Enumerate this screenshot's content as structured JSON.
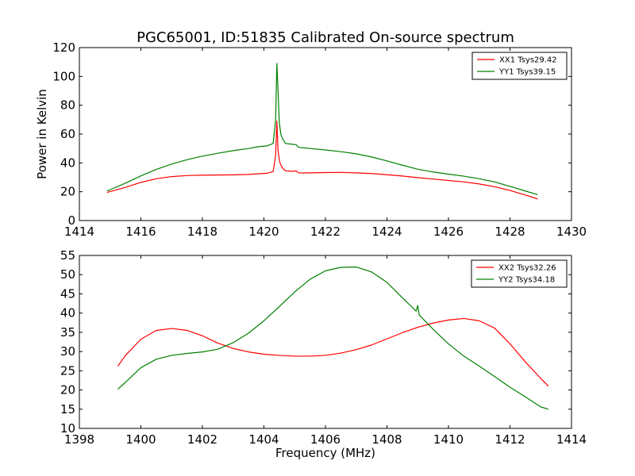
{
  "title": "PGC65001, ID:51835 Calibrated On-source spectrum",
  "chart_data": [
    {
      "type": "line",
      "ylabel": "Power in Kelvin",
      "xlabel": "",
      "xlim": [
        1414,
        1430
      ],
      "ylim": [
        0,
        120
      ],
      "xticks": [
        "1414",
        "1416",
        "1418",
        "1420",
        "1422",
        "1424",
        "1426",
        "1428",
        "1430"
      ],
      "yticks": [
        "0",
        "20",
        "40",
        "60",
        "80",
        "100",
        "120"
      ],
      "grid": false,
      "legend": "top-right",
      "series": [
        {
          "name": "XX1 Tsys29.42",
          "color": "#ff0000",
          "x": [
            1414.9,
            1415.5,
            1416,
            1416.5,
            1417,
            1417.5,
            1418,
            1418.5,
            1419,
            1419.5,
            1419.8,
            1420.1,
            1420.3,
            1420.38,
            1420.42,
            1420.46,
            1420.52,
            1420.6,
            1420.7,
            1420.9,
            1421.05,
            1421.12,
            1421.2,
            1421.5,
            1422,
            1422.5,
            1423,
            1423.5,
            1424,
            1424.5,
            1425,
            1425.5,
            1426,
            1426.5,
            1427,
            1427.5,
            1428,
            1428.5,
            1428.9
          ],
          "y": [
            19.5,
            23,
            26.5,
            29,
            30.5,
            31.2,
            31.5,
            31.6,
            31.7,
            32,
            32.4,
            32.8,
            34,
            45,
            69,
            48,
            40,
            36.5,
            34.5,
            34.2,
            34.4,
            33.2,
            33,
            33.1,
            33.3,
            33.4,
            33.1,
            32.6,
            31.8,
            30.9,
            29.8,
            28.8,
            27.8,
            26.8,
            25.4,
            23.5,
            20.9,
            17.7,
            15
          ]
        },
        {
          "name": "YY1 Tsys39.15",
          "color": "#008000",
          "x": [
            1414.9,
            1415.5,
            1416,
            1416.5,
            1417,
            1417.5,
            1418,
            1418.5,
            1419,
            1419.5,
            1419.8,
            1420.1,
            1420.3,
            1420.38,
            1420.42,
            1420.45,
            1420.5,
            1420.55,
            1420.6,
            1420.7,
            1420.9,
            1421.05,
            1421.12,
            1421.2,
            1421.5,
            1422,
            1422.5,
            1423,
            1423.5,
            1424,
            1424.5,
            1425,
            1425.5,
            1426,
            1426.5,
            1427,
            1427.5,
            1428,
            1428.5,
            1428.9
          ],
          "y": [
            20.5,
            26,
            31,
            35.5,
            39.2,
            42.2,
            44.7,
            46.7,
            48.5,
            50,
            51.2,
            51.8,
            53.5,
            70,
            109,
            95,
            68,
            60,
            57,
            53.5,
            53,
            52.6,
            51,
            50.6,
            50,
            49,
            47.8,
            46.3,
            44.1,
            41.4,
            38.4,
            35.6,
            33.7,
            32.2,
            30.8,
            29,
            26.8,
            23.7,
            20.5,
            18
          ]
        }
      ]
    },
    {
      "type": "line",
      "ylabel": "",
      "xlabel": "Frequency (MHz)",
      "xlim": [
        1398,
        1414
      ],
      "ylim": [
        10,
        55
      ],
      "xticks": [
        "1398",
        "1400",
        "1402",
        "1404",
        "1406",
        "1408",
        "1410",
        "1412",
        "1414"
      ],
      "yticks": [
        "10",
        "15",
        "20",
        "25",
        "30",
        "35",
        "40",
        "45",
        "50",
        "55"
      ],
      "grid": false,
      "legend": "top-right",
      "series": [
        {
          "name": "XX2 Tsys32.26",
          "color": "#ff0000",
          "x": [
            1399.25,
            1399.5,
            1400,
            1400.5,
            1401,
            1401.5,
            1402,
            1402.5,
            1403,
            1403.5,
            1404,
            1404.5,
            1405,
            1405.5,
            1406,
            1406.5,
            1407,
            1407.5,
            1408,
            1408.5,
            1409,
            1409.5,
            1410,
            1410.5,
            1411,
            1411.5,
            1412,
            1412.5,
            1413,
            1413.25
          ],
          "y": [
            26.2,
            29,
            33.2,
            35.5,
            36,
            35.5,
            34.1,
            32.2,
            30.8,
            29.9,
            29.3,
            29,
            28.8,
            28.8,
            29,
            29.6,
            30.5,
            31.7,
            33.3,
            34.9,
            36.3,
            37.4,
            38.2,
            38.6,
            38,
            36.1,
            32,
            27.3,
            23,
            21
          ]
        },
        {
          "name": "YY2 Tsys34.18",
          "color": "#008000",
          "x": [
            1399.25,
            1399.5,
            1400,
            1400.5,
            1401,
            1401.5,
            1402,
            1402.5,
            1403,
            1403.5,
            1404,
            1404.5,
            1405,
            1405.5,
            1406,
            1406.5,
            1407,
            1407.5,
            1408,
            1408.5,
            1408.95,
            1409.0,
            1409.05,
            1409.5,
            1410,
            1410.5,
            1411,
            1411.5,
            1412,
            1412.5,
            1413,
            1413.25
          ],
          "y": [
            20.2,
            22,
            25.8,
            28,
            29,
            29.5,
            29.9,
            30.6,
            32.3,
            34.8,
            38,
            41.7,
            45.5,
            48.8,
            51,
            51.9,
            52,
            50.7,
            48,
            44,
            40.5,
            42,
            39.5,
            35.8,
            32,
            28.8,
            26.2,
            23.5,
            20.7,
            18.2,
            15.6,
            15
          ]
        }
      ]
    }
  ]
}
